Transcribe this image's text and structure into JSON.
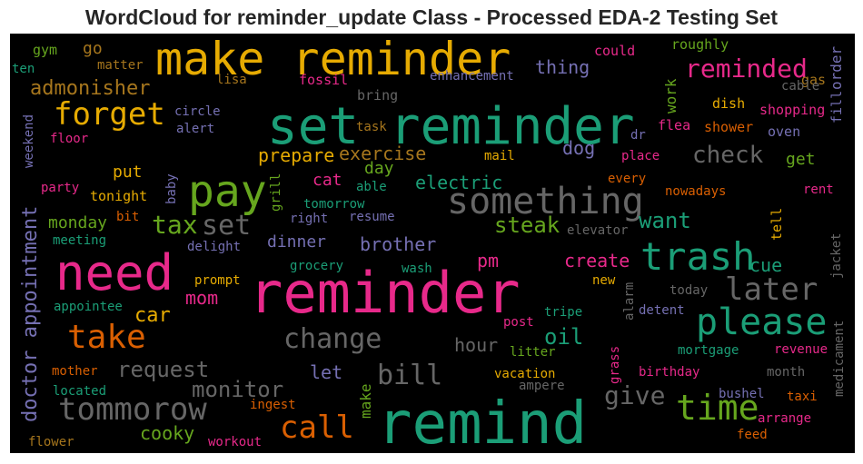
{
  "title": "WordCloud for reminder_update Class - Processed EDA-2 Testing Set",
  "colors": {
    "teal": "#1b9e77",
    "orange": "#d95f02",
    "purple": "#7570b3",
    "magenta": "#e7298a",
    "green": "#66a61e",
    "gold": "#e6ab02",
    "brown": "#a6761d",
    "gray": "#666666"
  },
  "words": [
    {
      "text": "set reminder",
      "color": "#1b9e77"
    },
    {
      "text": "remind",
      "color": "#1b9e77"
    },
    {
      "text": "reminder",
      "color": "#e7298a"
    },
    {
      "text": "make reminder",
      "color": "#e6ab02"
    },
    {
      "text": "need",
      "color": "#e7298a"
    },
    {
      "text": "pay",
      "color": "#66a61e"
    },
    {
      "text": "trash",
      "color": "#1b9e77"
    },
    {
      "text": "something",
      "color": "#666666"
    },
    {
      "text": "please",
      "color": "#1b9e77"
    },
    {
      "text": "forget",
      "color": "#e6ab02"
    },
    {
      "text": "take",
      "color": "#d95f02"
    },
    {
      "text": "tommorow",
      "color": "#666666"
    },
    {
      "text": "time",
      "color": "#66a61e"
    },
    {
      "text": "reminded",
      "color": "#e7298a"
    },
    {
      "text": "later",
      "color": "#666666"
    },
    {
      "text": "call",
      "color": "#d95f02"
    },
    {
      "text": "set",
      "color": "#666666"
    },
    {
      "text": "change",
      "color": "#666666"
    },
    {
      "text": "bill",
      "color": "#666666"
    },
    {
      "text": "tax",
      "color": "#66a61e"
    },
    {
      "text": "check",
      "color": "#666666"
    },
    {
      "text": "give",
      "color": "#666666"
    },
    {
      "text": "request",
      "color": "#666666"
    },
    {
      "text": "monitor",
      "color": "#666666"
    },
    {
      "text": "admonisher",
      "color": "#a6761d"
    },
    {
      "text": "steak",
      "color": "#66a61e"
    },
    {
      "text": "want",
      "color": "#1b9e77"
    },
    {
      "text": "oil",
      "color": "#1b9e77"
    },
    {
      "text": "car",
      "color": "#e6ab02"
    },
    {
      "text": "mom",
      "color": "#e7298a"
    },
    {
      "text": "create",
      "color": "#e7298a"
    },
    {
      "text": "cue",
      "color": "#1b9e77"
    },
    {
      "text": "pm",
      "color": "#e7298a"
    },
    {
      "text": "hour",
      "color": "#666666"
    },
    {
      "text": "thing",
      "color": "#7570b3"
    },
    {
      "text": "electric",
      "color": "#1b9e77"
    },
    {
      "text": "cooky",
      "color": "#66a61e"
    },
    {
      "text": "let",
      "color": "#7570b3"
    },
    {
      "text": "brother",
      "color": "#7570b3"
    },
    {
      "text": "dinner",
      "color": "#7570b3"
    },
    {
      "text": "prepare",
      "color": "#e6ab02"
    },
    {
      "text": "exercise",
      "color": "#a6761d"
    },
    {
      "text": "dog",
      "color": "#7570b3"
    },
    {
      "text": "monday",
      "color": "#66a61e"
    },
    {
      "text": "cat",
      "color": "#e7298a"
    },
    {
      "text": "day",
      "color": "#66a61e"
    },
    {
      "text": "put",
      "color": "#e6ab02"
    },
    {
      "text": "get",
      "color": "#66a61e"
    },
    {
      "text": "go",
      "color": "#a6761d"
    },
    {
      "text": "gym",
      "color": "#66a61e"
    },
    {
      "text": "ten",
      "color": "#1b9e77"
    },
    {
      "text": "matter",
      "color": "#a6761d"
    },
    {
      "text": "lisa",
      "color": "#a6761d"
    },
    {
      "text": "fossil",
      "color": "#e7298a"
    },
    {
      "text": "bring",
      "color": "#666666"
    },
    {
      "text": "enhancement",
      "color": "#7570b3"
    },
    {
      "text": "could",
      "color": "#e7298a"
    },
    {
      "text": "roughly",
      "color": "#66a61e"
    },
    {
      "text": "gas",
      "color": "#a6761d"
    },
    {
      "text": "cable",
      "color": "#666666"
    },
    {
      "text": "shopping",
      "color": "#e7298a"
    },
    {
      "text": "dish",
      "color": "#e6ab02"
    },
    {
      "text": "flea",
      "color": "#e7298a"
    },
    {
      "text": "shower",
      "color": "#d95f02"
    },
    {
      "text": "oven",
      "color": "#7570b3"
    },
    {
      "text": "circle",
      "color": "#7570b3"
    },
    {
      "text": "alert",
      "color": "#7570b3"
    },
    {
      "text": "task",
      "color": "#a6761d"
    },
    {
      "text": "dr",
      "color": "#7570b3"
    },
    {
      "text": "floor",
      "color": "#e7298a"
    },
    {
      "text": "mail",
      "color": "#e6ab02"
    },
    {
      "text": "place",
      "color": "#e7298a"
    },
    {
      "text": "every",
      "color": "#d95f02"
    },
    {
      "text": "nowadays",
      "color": "#d95f02"
    },
    {
      "text": "rent",
      "color": "#e7298a"
    },
    {
      "text": "party",
      "color": "#e7298a"
    },
    {
      "text": "tonight",
      "color": "#e6ab02"
    },
    {
      "text": "able",
      "color": "#1b9e77"
    },
    {
      "text": "tomorrow",
      "color": "#1b9e77"
    },
    {
      "text": "right",
      "color": "#7570b3"
    },
    {
      "text": "resume",
      "color": "#7570b3"
    },
    {
      "text": "bit",
      "color": "#d95f02"
    },
    {
      "text": "elevator",
      "color": "#666666"
    },
    {
      "text": "meeting",
      "color": "#1b9e77"
    },
    {
      "text": "delight",
      "color": "#7570b3"
    },
    {
      "text": "grocery",
      "color": "#1b9e77"
    },
    {
      "text": "wash",
      "color": "#1b9e77"
    },
    {
      "text": "new",
      "color": "#e6ab02"
    },
    {
      "text": "prompt",
      "color": "#e6ab02"
    },
    {
      "text": "today",
      "color": "#666666"
    },
    {
      "text": "appointee",
      "color": "#1b9e77"
    },
    {
      "text": "tripe",
      "color": "#1b9e77"
    },
    {
      "text": "detent",
      "color": "#7570b3"
    },
    {
      "text": "post",
      "color": "#e7298a"
    },
    {
      "text": "litter",
      "color": "#66a61e"
    },
    {
      "text": "mortgage",
      "color": "#1b9e77"
    },
    {
      "text": "revenue",
      "color": "#e7298a"
    },
    {
      "text": "mother",
      "color": "#d95f02"
    },
    {
      "text": "vacation",
      "color": "#e6ab02"
    },
    {
      "text": "birthday",
      "color": "#e7298a"
    },
    {
      "text": "month",
      "color": "#666666"
    },
    {
      "text": "located",
      "color": "#1b9e77"
    },
    {
      "text": "ampere",
      "color": "#666666"
    },
    {
      "text": "bushel",
      "color": "#7570b3"
    },
    {
      "text": "taxi",
      "color": "#d95f02"
    },
    {
      "text": "ingest",
      "color": "#d95f02"
    },
    {
      "text": "arrange",
      "color": "#e7298a"
    },
    {
      "text": "flower",
      "color": "#a6761d"
    },
    {
      "text": "workout",
      "color": "#e7298a"
    },
    {
      "text": "feed",
      "color": "#d95f02"
    },
    {
      "text": "doctor appointment",
      "color": "#7570b3"
    },
    {
      "text": "work",
      "color": "#66a61e"
    },
    {
      "text": "order",
      "color": "#7570b3"
    },
    {
      "text": "fill",
      "color": "#7570b3"
    },
    {
      "text": "weekend",
      "color": "#7570b3"
    },
    {
      "text": "baby",
      "color": "#7570b3"
    },
    {
      "text": "grill",
      "color": "#66a61e"
    },
    {
      "text": "tell",
      "color": "#e6ab02"
    },
    {
      "text": "jacket",
      "color": "#666666"
    },
    {
      "text": "alarm",
      "color": "#666666"
    },
    {
      "text": "grass",
      "color": "#e7298a"
    },
    {
      "text": "make",
      "color": "#66a61e"
    },
    {
      "text": "medicament",
      "color": "#666666"
    }
  ]
}
